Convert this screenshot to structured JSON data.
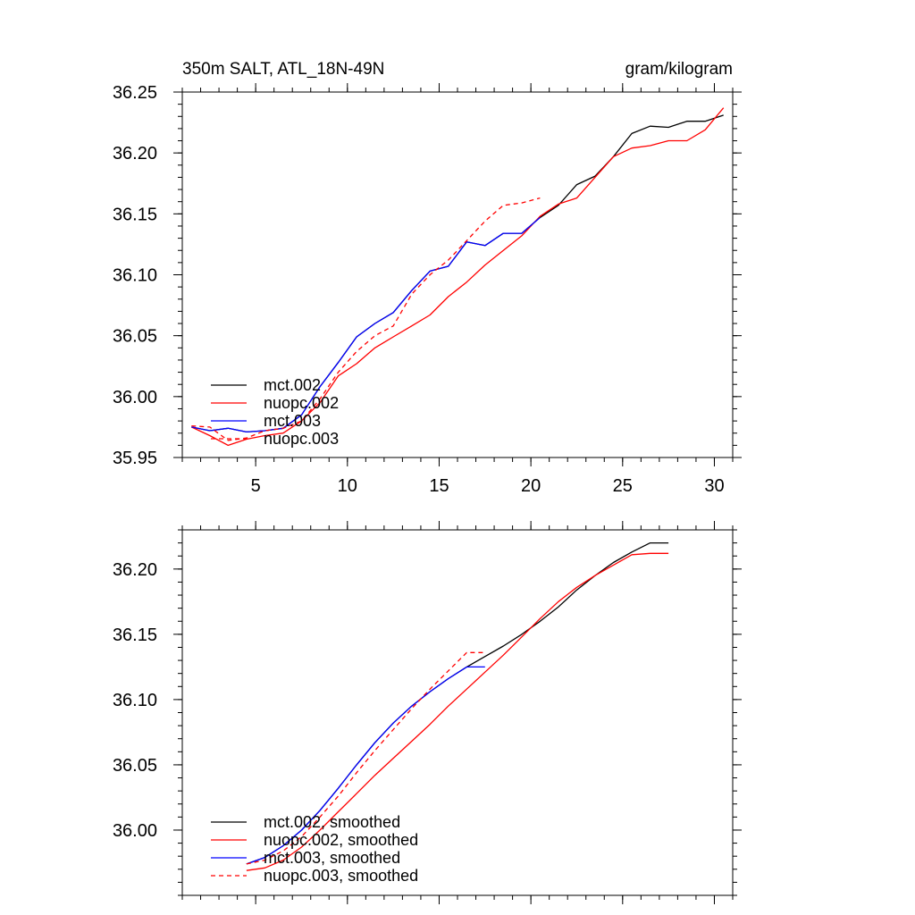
{
  "chart_data": [
    {
      "type": "line",
      "title": "350m SALT, ATL_18N-49N",
      "units": "gram/kilogram",
      "xlim": [
        1,
        31
      ],
      "ylim": [
        35.95,
        36.25
      ],
      "xticks": [
        5,
        10,
        15,
        20,
        25,
        30
      ],
      "xtick_labels": [
        "5",
        "10",
        "15",
        "20",
        "25",
        "30"
      ],
      "yticks": [
        35.95,
        36.0,
        36.05,
        36.1,
        36.15,
        36.2,
        36.25
      ],
      "ytick_labels": [
        "35.95",
        "36.00",
        "36.05",
        "36.10",
        "36.15",
        "36.20",
        "36.25"
      ],
      "legend_position": "bottom-left",
      "series": [
        {
          "name": "mct.002",
          "color": "#000000",
          "dash": "solid",
          "x": [
            1.5,
            2.5,
            3.5,
            4.5,
            5.5,
            6.5,
            7.5,
            8.5,
            9.5,
            10.5,
            11.5,
            12.5,
            13.5,
            14.5,
            15.5,
            16.5,
            17.5,
            18.5,
            19.5,
            20.5,
            21.5,
            22.5,
            23.5,
            24.5,
            25.5,
            26.5,
            27.5,
            28.5,
            29.5,
            30.5
          ],
          "y": [
            35.975,
            35.972,
            35.974,
            35.971,
            35.972,
            35.974,
            35.985,
            36.008,
            36.028,
            36.049,
            36.06,
            36.069,
            36.087,
            36.103,
            36.107,
            36.127,
            36.124,
            36.134,
            36.134,
            36.147,
            36.157,
            36.174,
            36.181,
            36.197,
            36.216,
            36.222,
            36.221,
            36.226,
            36.226,
            36.231
          ]
        },
        {
          "name": "nuopc.002",
          "color": "#ff0000",
          "dash": "solid",
          "x": [
            1.5,
            2.5,
            3.5,
            4.5,
            5.5,
            6.5,
            7.5,
            8.5,
            9.5,
            10.5,
            11.5,
            12.5,
            13.5,
            14.5,
            15.5,
            16.5,
            17.5,
            18.5,
            19.5,
            20.5,
            21.5,
            22.5,
            23.5,
            24.5,
            25.5,
            26.5,
            27.5,
            28.5,
            29.5,
            30.5
          ],
          "y": [
            35.975,
            35.968,
            35.96,
            35.965,
            35.968,
            35.97,
            35.98,
            35.995,
            36.017,
            36.027,
            36.04,
            36.049,
            36.058,
            36.067,
            36.082,
            36.094,
            36.108,
            36.12,
            36.132,
            36.148,
            36.158,
            36.163,
            36.18,
            36.197,
            36.204,
            36.206,
            36.21,
            36.21,
            36.219,
            36.237
          ]
        },
        {
          "name": "mct.003",
          "color": "#0000ff",
          "dash": "solid",
          "x": [
            1.5,
            2.5,
            3.5,
            4.5,
            5.5,
            6.5,
            7.5,
            8.5,
            9.5,
            10.5,
            11.5,
            12.5,
            13.5,
            14.5,
            15.5,
            16.5,
            17.5,
            18.5,
            19.5,
            20.5
          ],
          "y": [
            35.975,
            35.972,
            35.974,
            35.971,
            35.972,
            35.974,
            35.985,
            36.008,
            36.028,
            36.049,
            36.06,
            36.069,
            36.087,
            36.103,
            36.107,
            36.127,
            36.124,
            36.134,
            36.134,
            36.147
          ]
        },
        {
          "name": "nuopc.003",
          "color": "#ff0000",
          "dash": "dashed",
          "x": [
            1.5,
            2.5,
            3.5,
            4.5,
            5.5,
            6.5,
            7.5,
            8.5,
            9.5,
            10.5,
            11.5,
            12.5,
            13.5,
            14.5,
            15.5,
            16.5,
            17.5,
            18.5,
            19.5,
            20.5
          ],
          "y": [
            35.976,
            35.975,
            35.964,
            35.966,
            35.972,
            35.974,
            35.98,
            35.998,
            36.02,
            36.037,
            36.05,
            36.058,
            36.084,
            36.1,
            36.112,
            36.128,
            36.144,
            36.157,
            36.159,
            36.163
          ]
        }
      ]
    },
    {
      "type": "line",
      "title": "",
      "xlim": [
        1,
        31
      ],
      "ylim": [
        35.95,
        36.23
      ],
      "xticks": [
        5,
        10,
        15,
        20,
        25,
        30
      ],
      "xtick_labels": [
        "",
        "",
        "",
        "",
        "",
        ""
      ],
      "yticks": [
        36.0,
        36.05,
        36.1,
        36.15,
        36.2
      ],
      "ytick_labels": [
        "36.00",
        "36.05",
        "36.10",
        "36.15",
        "36.20"
      ],
      "legend_position": "bottom-left",
      "series": [
        {
          "name": "mct.002, smoothed",
          "color": "#000000",
          "dash": "solid",
          "x": [
            4.5,
            5.5,
            6.5,
            7.5,
            8.5,
            9.5,
            10.5,
            11.5,
            12.5,
            13.5,
            14.5,
            15.5,
            16.5,
            17.5,
            18.5,
            19.5,
            20.5,
            21.5,
            22.5,
            23.5,
            24.5,
            25.5,
            26.5,
            27.5
          ],
          "y": [
            35.974,
            35.979,
            35.988,
            36.0,
            36.015,
            36.032,
            36.05,
            36.067,
            36.082,
            36.095,
            36.106,
            36.116,
            36.125,
            36.133,
            36.141,
            36.15,
            36.16,
            36.171,
            36.184,
            36.195,
            36.205,
            36.213,
            36.22,
            36.22
          ]
        },
        {
          "name": "nuopc.002, smoothed",
          "color": "#ff0000",
          "dash": "solid",
          "x": [
            4.5,
            5.5,
            6.5,
            7.5,
            8.5,
            9.5,
            10.5,
            11.5,
            12.5,
            13.5,
            14.5,
            15.5,
            16.5,
            17.5,
            18.5,
            19.5,
            20.5,
            21.5,
            22.5,
            23.5,
            24.5,
            25.5,
            26.5,
            27.5
          ],
          "y": [
            35.969,
            35.971,
            35.977,
            35.987,
            36.0,
            36.014,
            36.028,
            36.042,
            36.055,
            36.068,
            36.081,
            36.095,
            36.108,
            36.121,
            36.134,
            36.148,
            36.162,
            36.175,
            36.186,
            36.195,
            36.203,
            36.211,
            36.212,
            36.212
          ]
        },
        {
          "name": "mct.003, smoothed",
          "color": "#0000ff",
          "dash": "solid",
          "x": [
            4.5,
            5.5,
            6.5,
            7.5,
            8.5,
            9.5,
            10.5,
            11.5,
            12.5,
            13.5,
            14.5,
            15.5,
            16.5,
            17.5
          ],
          "y": [
            35.974,
            35.979,
            35.988,
            36.0,
            36.015,
            36.032,
            36.05,
            36.067,
            36.082,
            36.095,
            36.106,
            36.116,
            36.125,
            36.125
          ]
        },
        {
          "name": "nuopc.003, smoothed",
          "color": "#ff0000",
          "dash": "dashed",
          "x": [
            4.5,
            5.5,
            6.5,
            7.5,
            8.5,
            9.5,
            10.5,
            11.5,
            12.5,
            13.5,
            14.5,
            15.5,
            16.5,
            17.5
          ],
          "y": [
            35.974,
            35.977,
            35.984,
            35.995,
            36.01,
            36.026,
            36.044,
            36.061,
            36.077,
            36.093,
            36.108,
            36.122,
            36.136,
            36.136
          ]
        }
      ]
    }
  ]
}
